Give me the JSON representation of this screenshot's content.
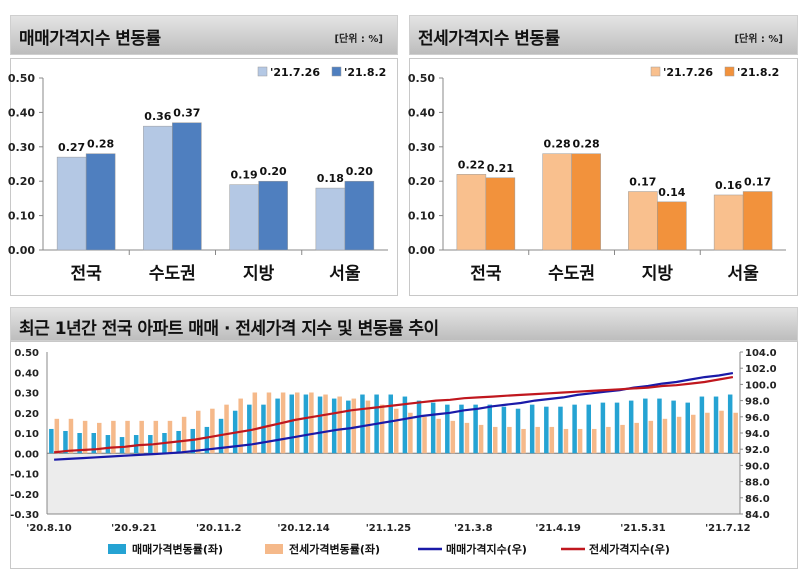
{
  "charts": {
    "sale": {
      "title": "매매가격지수 변동률",
      "unit": "[단위 : %]"
    },
    "jeonse": {
      "title": "전세가격지수 변동률",
      "unit": "[단위 : %]"
    },
    "trend": {
      "title": "최근 1년간 전국 아파트 매매 · 전세가격 지수 및 변동률 추이"
    }
  },
  "chart_data": [
    {
      "type": "bar",
      "title": "매매가격지수 변동률",
      "unit": "[단위 : %]",
      "categories": [
        "전국",
        "수도권",
        "지방",
        "서울"
      ],
      "series": [
        {
          "name": "'21.7.26",
          "color": "#b4c8e4",
          "values": [
            0.27,
            0.36,
            0.19,
            0.18
          ]
        },
        {
          "name": "'21.8.2",
          "color": "#4f7fbf",
          "values": [
            0.28,
            0.37,
            0.2,
            0.2
          ]
        }
      ],
      "ylim": [
        0,
        0.5
      ],
      "yticks": [
        "0.00",
        "0.10",
        "0.20",
        "0.30",
        "0.40",
        "0.50"
      ],
      "legend": "top-right"
    },
    {
      "type": "bar",
      "title": "전세가격지수 변동률",
      "unit": "[단위 : %]",
      "categories": [
        "전국",
        "수도권",
        "지방",
        "서울"
      ],
      "series": [
        {
          "name": "'21.7.26",
          "color": "#f9c08e",
          "values": [
            0.22,
            0.28,
            0.17,
            0.16
          ]
        },
        {
          "name": "'21.8.2",
          "color": "#f2923c",
          "values": [
            0.21,
            0.28,
            0.14,
            0.17
          ]
        }
      ],
      "ylim": [
        0,
        0.5
      ],
      "yticks": [
        "0.00",
        "0.10",
        "0.20",
        "0.30",
        "0.40",
        "0.50"
      ],
      "legend": "top-right"
    },
    {
      "type": "bar+line",
      "title": "최근 1년간 전국 아파트 매매 · 전세가격 지수 및 변동률 추이",
      "x_tick_labels": [
        "'20.8.10",
        "'20.9.21",
        "'20.11.2",
        "'20.12.14",
        "'21.1.25",
        "'21.3.8",
        "'21.4.19",
        "'21.5.31",
        "'21.7.12"
      ],
      "y_left": {
        "ylim": [
          -0.3,
          0.5
        ],
        "ticks": [
          "0.50",
          "0.40",
          "0.30",
          "0.20",
          "0.10",
          "0.00",
          "-0.10",
          "-0.20",
          "-0.30"
        ]
      },
      "y_right": {
        "ylim": [
          84,
          104
        ],
        "ticks": [
          "104.0",
          "102.0",
          "100.0",
          "98.0",
          "96.0",
          "94.0",
          "92.0",
          "90.0",
          "88.0",
          "86.0",
          "84.0"
        ]
      },
      "legend": "bottom",
      "bars": [
        {
          "name": "매매가격변동률(좌)",
          "axis": "left",
          "color": "#25a3d3",
          "values": [
            0.12,
            0.11,
            0.1,
            0.1,
            0.09,
            0.08,
            0.09,
            0.09,
            0.1,
            0.11,
            0.12,
            0.13,
            0.17,
            0.21,
            0.24,
            0.24,
            0.27,
            0.29,
            0.29,
            0.28,
            0.27,
            0.26,
            0.29,
            0.29,
            0.29,
            0.28,
            0.26,
            0.25,
            0.24,
            0.24,
            0.24,
            0.24,
            0.23,
            0.22,
            0.24,
            0.23,
            0.23,
            0.24,
            0.24,
            0.25,
            0.25,
            0.26,
            0.27,
            0.27,
            0.26,
            0.25,
            0.28,
            0.28,
            0.29
          ]
        },
        {
          "name": "전세가격변동률(좌)",
          "axis": "left",
          "color": "#f5b98a",
          "values": [
            0.17,
            0.17,
            0.16,
            0.15,
            0.16,
            0.16,
            0.16,
            0.16,
            0.16,
            0.18,
            0.21,
            0.22,
            0.24,
            0.27,
            0.3,
            0.3,
            0.3,
            0.3,
            0.3,
            0.29,
            0.28,
            0.27,
            0.26,
            0.24,
            0.22,
            0.2,
            0.18,
            0.17,
            0.16,
            0.15,
            0.14,
            0.13,
            0.13,
            0.12,
            0.13,
            0.13,
            0.12,
            0.12,
            0.12,
            0.13,
            0.14,
            0.15,
            0.16,
            0.17,
            0.18,
            0.19,
            0.2,
            0.21,
            0.2
          ]
        }
      ],
      "lines": [
        {
          "name": "매매가격지수(우)",
          "axis": "right",
          "color": "#1a1aa8",
          "values": [
            90.7,
            90.8,
            90.9,
            91.0,
            91.1,
            91.2,
            91.3,
            91.4,
            91.5,
            91.6,
            91.8,
            92.0,
            92.2,
            92.4,
            92.6,
            92.9,
            93.2,
            93.5,
            93.8,
            94.1,
            94.4,
            94.6,
            94.9,
            95.2,
            95.5,
            95.8,
            96.1,
            96.3,
            96.5,
            96.8,
            97.0,
            97.3,
            97.5,
            97.7,
            98.0,
            98.2,
            98.4,
            98.7,
            98.9,
            99.1,
            99.3,
            99.6,
            99.8,
            100.1,
            100.3,
            100.6,
            100.9,
            101.1,
            101.4
          ]
        },
        {
          "name": "전세가격지수(우)",
          "axis": "right",
          "color": "#c0171e",
          "values": [
            91.6,
            91.8,
            91.9,
            92.0,
            92.2,
            92.3,
            92.5,
            92.6,
            92.8,
            93.0,
            93.2,
            93.5,
            93.8,
            94.1,
            94.4,
            94.8,
            95.2,
            95.6,
            95.9,
            96.2,
            96.5,
            96.8,
            97.0,
            97.2,
            97.4,
            97.6,
            97.8,
            98.0,
            98.1,
            98.3,
            98.4,
            98.5,
            98.6,
            98.7,
            98.8,
            98.9,
            99.0,
            99.1,
            99.2,
            99.3,
            99.4,
            99.5,
            99.6,
            99.8,
            99.9,
            100.1,
            100.3,
            100.6,
            100.9
          ]
        }
      ]
    }
  ]
}
